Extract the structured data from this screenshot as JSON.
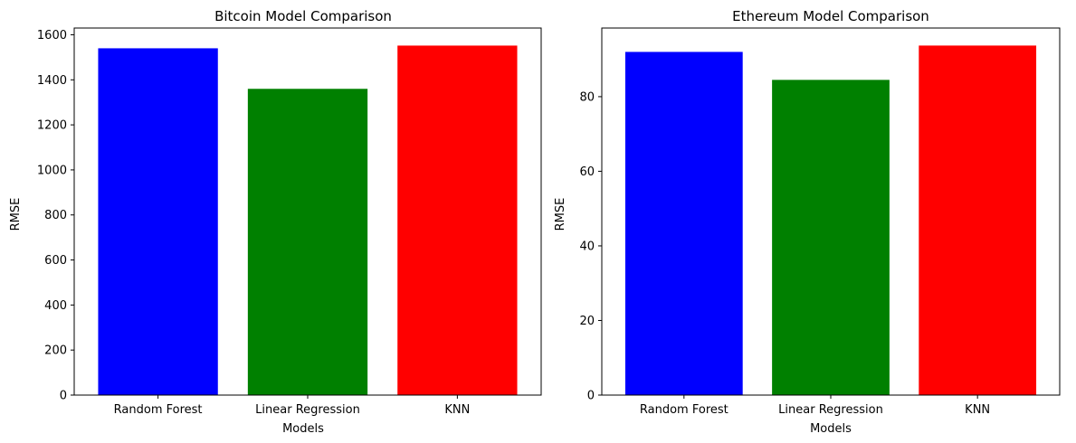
{
  "chart_data": [
    {
      "type": "bar",
      "title": "Bitcoin Model Comparison",
      "xlabel": "Models",
      "ylabel": "RMSE",
      "categories": [
        "Random Forest",
        "Linear Regression",
        "KNN"
      ],
      "values": [
        1540,
        1360,
        1552
      ],
      "colors": [
        "#0000ff",
        "#008000",
        "#ff0000"
      ],
      "ylim": [
        0,
        1630
      ],
      "yticks": [
        0,
        200,
        400,
        600,
        800,
        1000,
        1200,
        1400,
        1600
      ],
      "grid": false,
      "legend": "none"
    },
    {
      "type": "bar",
      "title": "Ethereum Model Comparison",
      "xlabel": "Models",
      "ylabel": "RMSE",
      "categories": [
        "Random Forest",
        "Linear Regression",
        "KNN"
      ],
      "values": [
        92.0,
        84.5,
        93.7
      ],
      "colors": [
        "#0000ff",
        "#008000",
        "#ff0000"
      ],
      "ylim": [
        0,
        98.4
      ],
      "yticks": [
        0,
        20,
        40,
        60,
        80
      ],
      "grid": false,
      "legend": "none"
    }
  ]
}
